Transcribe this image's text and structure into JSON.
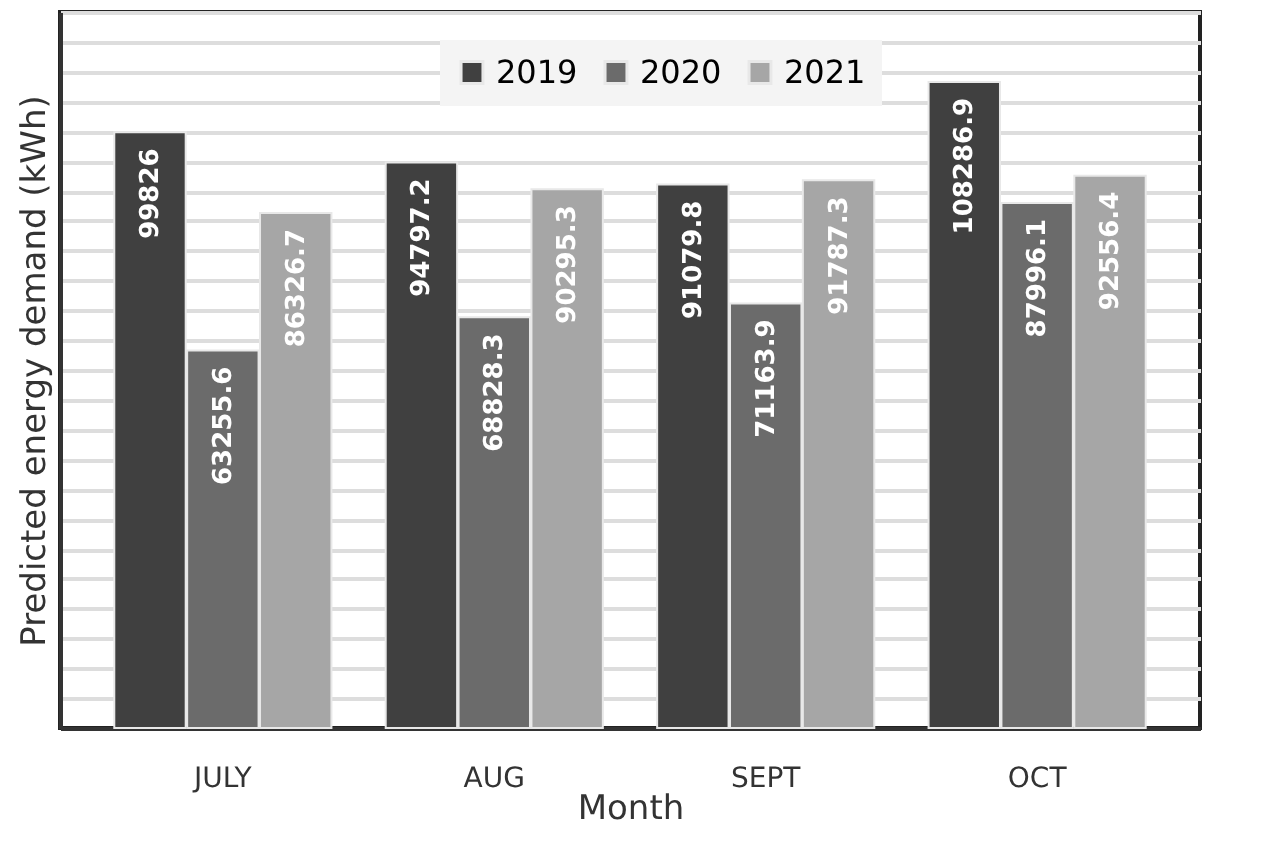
{
  "chart_data": {
    "type": "bar",
    "xlabel": "Month",
    "ylabel": "Predicted energy demand (kWh)",
    "categories": [
      "JULY",
      "AUG",
      "SEPT",
      "OCT"
    ],
    "series": [
      {
        "name": "2019",
        "color": "#404040",
        "values": [
          99826,
          94797.2,
          91079.8,
          108286.9
        ]
      },
      {
        "name": "2020",
        "color": "#6b6b6b",
        "values": [
          63255.6,
          68828.3,
          71163.9,
          87996.1
        ]
      },
      {
        "name": "2021",
        "color": "#a6a6a6",
        "values": [
          86326.7,
          90295.3,
          91787.3,
          92556.4
        ]
      }
    ],
    "ylim": [
      0,
      120000
    ],
    "grid": "y",
    "legend": "top",
    "tick_labels": "x",
    "data_labels": true
  }
}
